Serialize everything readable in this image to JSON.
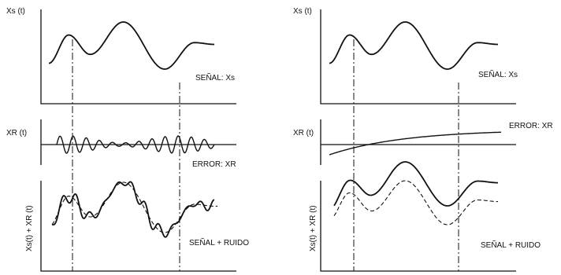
{
  "left": {
    "top_ylabel": "Xs (t)",
    "top_caption": "SEÑAL: Xs",
    "mid_ylabel": "XR (t)",
    "mid_caption": "ERROR: XR",
    "bottom_ylabel": "Xs(t) + XR (t)",
    "bottom_caption": "SEÑAL + RUIDO"
  },
  "right": {
    "top_ylabel": "Xs (t)",
    "top_caption": "SEÑAL: Xs",
    "mid_ylabel": "XR (t)",
    "mid_caption": "ERROR: XR",
    "bottom_ylabel": "Xs(t) + XR (t)",
    "bottom_caption": "SEÑAL + RUIDO"
  }
}
